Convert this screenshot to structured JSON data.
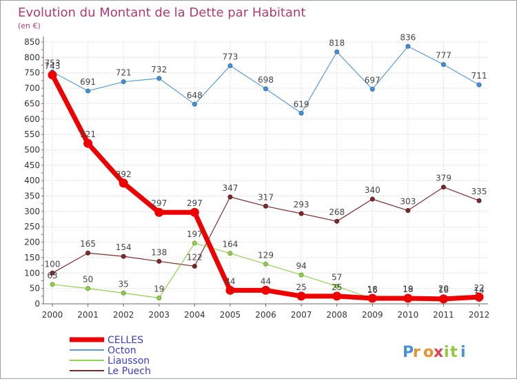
{
  "chart_data": {
    "type": "line",
    "title": "Evolution du Montant de la Dette par Habitant",
    "subtitle": "(en €)",
    "x": [
      "2000",
      "2001",
      "2002",
      "2003",
      "2004",
      "2005",
      "2006",
      "2007",
      "2008",
      "2009",
      "2010",
      "2011",
      "2012"
    ],
    "yticks": [
      0,
      50,
      100,
      150,
      200,
      250,
      300,
      350,
      400,
      450,
      500,
      550,
      600,
      650,
      700,
      750,
      800,
      850
    ],
    "ylim": [
      0,
      850
    ],
    "grid": true,
    "legend_position": "bottom-left",
    "series": [
      {
        "name": "CELLES",
        "color": "#ee0000",
        "values": [
          743,
          521,
          392,
          297,
          297,
          44,
          44,
          25,
          25,
          18,
          18,
          16,
          22
        ]
      },
      {
        "name": "Octon",
        "color": "#5b9bd5",
        "values": [
          753,
          691,
          721,
          732,
          648,
          773,
          698,
          619,
          818,
          697,
          836,
          777,
          711
        ]
      },
      {
        "name": "Liausson",
        "color": "#92d050",
        "values": [
          63,
          50,
          35,
          19,
          197,
          164,
          129,
          94,
          57,
          16,
          19,
          20,
          14
        ]
      },
      {
        "name": "Le Puech",
        "color": "#7b2c2c",
        "values": [
          100,
          165,
          154,
          138,
          122,
          347,
          317,
          293,
          268,
          340,
          303,
          379,
          335
        ]
      }
    ],
    "labels": {
      "CELLES": [
        "743",
        "521",
        "392",
        "297",
        "297",
        "44",
        "44",
        "25",
        "25",
        "18",
        "18",
        "16",
        "22"
      ],
      "Octon": [
        "753",
        "691",
        "721",
        "732",
        "648",
        "773",
        "698",
        "619",
        "818",
        "697",
        "836",
        "777",
        "711"
      ],
      "Liausson": [
        "63",
        "50",
        "35",
        "19",
        "197",
        "164",
        "129",
        "94",
        "57",
        "16",
        "19",
        "20",
        "14"
      ],
      "Le Puech": [
        "100",
        "165",
        "154",
        "138",
        "122",
        "347",
        "317",
        "293",
        "268",
        "340",
        "303",
        "379",
        "335"
      ]
    },
    "logo": "Proxiti"
  }
}
